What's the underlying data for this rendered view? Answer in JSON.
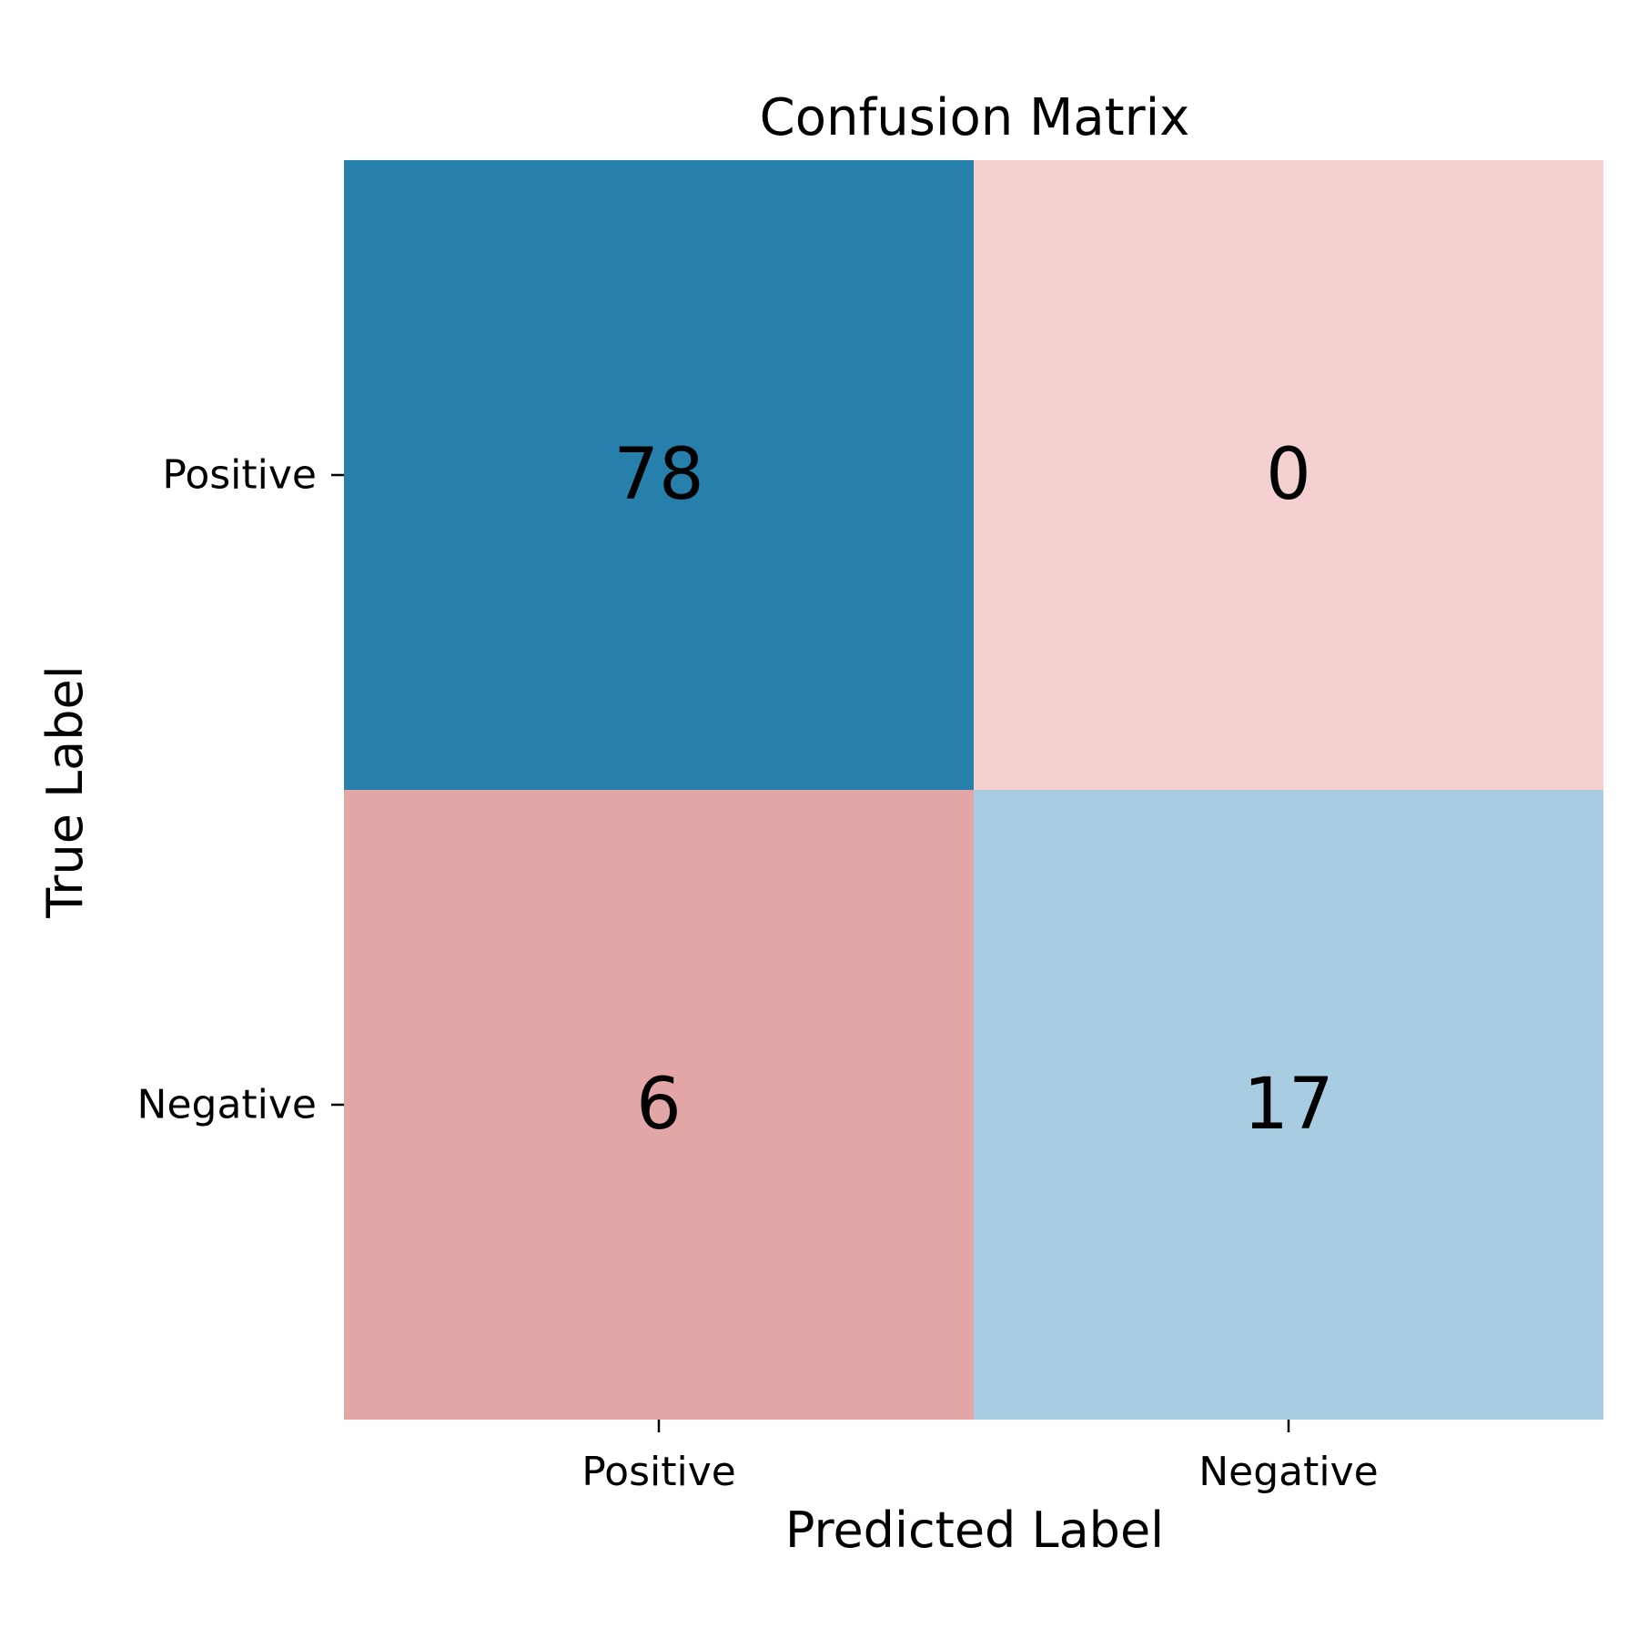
{
  "chart_data": {
    "type": "heatmap",
    "title": "Confusion Matrix",
    "xlabel": "Predicted Label",
    "ylabel": "True Label",
    "x_categories": [
      "Positive",
      "Negative"
    ],
    "y_categories": [
      "Positive",
      "Negative"
    ],
    "values": [
      [
        78,
        0
      ],
      [
        6,
        17
      ]
    ],
    "cell_colors": [
      [
        "#277fab",
        "#f5d0d1"
      ],
      [
        "#e2a6a7",
        "#a8cce2"
      ]
    ],
    "colorbar": false,
    "grid": false
  }
}
